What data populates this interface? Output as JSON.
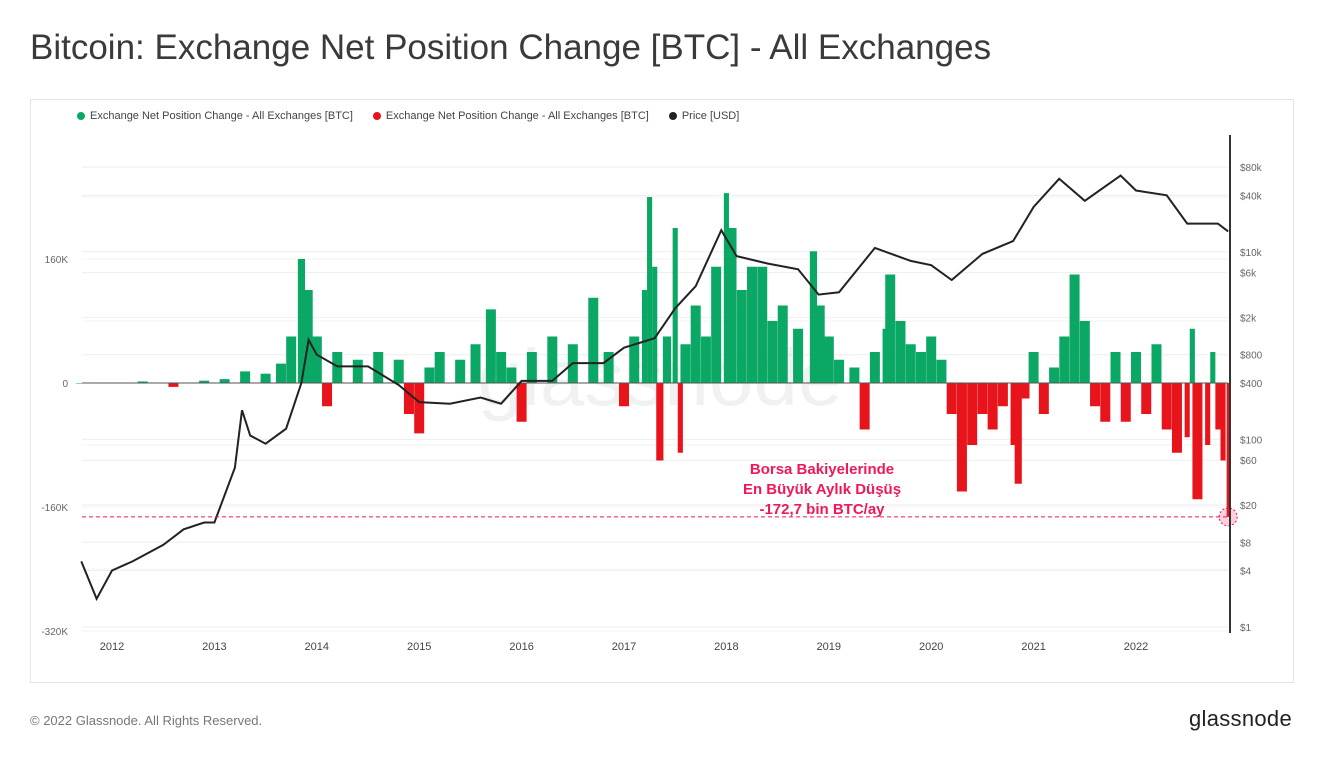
{
  "title": "Bitcoin: Exchange Net Position Change [BTC] - All Exchanges",
  "footer": "© 2022 Glassnode. All Rights Reserved.",
  "logo": "glassnode",
  "watermark": "glassnode",
  "colors": {
    "positive": "#0aa864",
    "negative": "#e8141b",
    "price": "#222222",
    "annotation": "#f0185a"
  },
  "chart_data": {
    "type": "bar+line",
    "legend_position": "top-left",
    "legend": [
      {
        "label": "Exchange Net Position Change - All Exchanges [BTC]",
        "color": "#0aa864"
      },
      {
        "label": "Exchange Net Position Change - All Exchanges [BTC]",
        "color": "#e8141b"
      },
      {
        "label": "Price [USD]",
        "color": "#222222"
      }
    ],
    "x_ticks": [
      "2012",
      "2013",
      "2014",
      "2015",
      "2016",
      "2017",
      "2018",
      "2019",
      "2020",
      "2021",
      "2022"
    ],
    "x_range": [
      2011.7,
      2022.9
    ],
    "left_axis": {
      "ticks": [
        {
          "v": 160,
          "label": "160K"
        },
        {
          "v": 0,
          "label": "0"
        },
        {
          "v": -160,
          "label": "-160K"
        },
        {
          "v": -320,
          "label": "-320K"
        }
      ],
      "unit": "thousand BTC",
      "range": [
        -320,
        320
      ]
    },
    "right_axis": {
      "scale": "log",
      "ticks": [
        {
          "v": 80000,
          "label": "$80k"
        },
        {
          "v": 40000,
          "label": "$40k"
        },
        {
          "v": 10000,
          "label": "$10k"
        },
        {
          "v": 6000,
          "label": "$6k"
        },
        {
          "v": 2000,
          "label": "$2k"
        },
        {
          "v": 800,
          "label": "$800"
        },
        {
          "v": 400,
          "label": "$400"
        },
        {
          "v": 100,
          "label": "$100"
        },
        {
          "v": 60,
          "label": "$60"
        },
        {
          "v": 20,
          "label": "$20"
        },
        {
          "v": 8,
          "label": "$8"
        },
        {
          "v": 4,
          "label": "$4"
        },
        {
          "v": 1,
          "label": "$1"
        }
      ],
      "range": [
        1,
        400000
      ]
    },
    "net_position_change_kbtc": [
      [
        2011.7,
        0
      ],
      [
        2012.3,
        2
      ],
      [
        2012.6,
        -5
      ],
      [
        2012.9,
        3
      ],
      [
        2013.1,
        5
      ],
      [
        2013.3,
        15
      ],
      [
        2013.5,
        12
      ],
      [
        2013.65,
        25
      ],
      [
        2013.75,
        60
      ],
      [
        2013.85,
        160
      ],
      [
        2013.92,
        120
      ],
      [
        2014.0,
        60
      ],
      [
        2014.1,
        -30
      ],
      [
        2014.2,
        40
      ],
      [
        2014.4,
        30
      ],
      [
        2014.6,
        40
      ],
      [
        2014.8,
        30
      ],
      [
        2014.9,
        -40
      ],
      [
        2015.0,
        -65
      ],
      [
        2015.1,
        20
      ],
      [
        2015.2,
        40
      ],
      [
        2015.4,
        30
      ],
      [
        2015.55,
        50
      ],
      [
        2015.7,
        95
      ],
      [
        2015.8,
        40
      ],
      [
        2015.9,
        20
      ],
      [
        2016.0,
        -50
      ],
      [
        2016.1,
        40
      ],
      [
        2016.3,
        60
      ],
      [
        2016.5,
        50
      ],
      [
        2016.7,
        110
      ],
      [
        2016.85,
        40
      ],
      [
        2017.0,
        -30
      ],
      [
        2017.1,
        60
      ],
      [
        2017.2,
        120
      ],
      [
        2017.25,
        240
      ],
      [
        2017.3,
        150
      ],
      [
        2017.35,
        -100
      ],
      [
        2017.42,
        60
      ],
      [
        2017.5,
        200
      ],
      [
        2017.55,
        -90
      ],
      [
        2017.6,
        50
      ],
      [
        2017.7,
        100
      ],
      [
        2017.8,
        60
      ],
      [
        2017.9,
        150
      ],
      [
        2018.0,
        245
      ],
      [
        2018.05,
        200
      ],
      [
        2018.15,
        120
      ],
      [
        2018.25,
        150
      ],
      [
        2018.35,
        150
      ],
      [
        2018.45,
        80
      ],
      [
        2018.55,
        100
      ],
      [
        2018.7,
        70
      ],
      [
        2018.85,
        170
      ],
      [
        2018.92,
        100
      ],
      [
        2019.0,
        60
      ],
      [
        2019.1,
        30
      ],
      [
        2019.25,
        20
      ],
      [
        2019.35,
        -60
      ],
      [
        2019.45,
        40
      ],
      [
        2019.55,
        70
      ],
      [
        2019.6,
        140
      ],
      [
        2019.7,
        80
      ],
      [
        2019.8,
        50
      ],
      [
        2019.9,
        40
      ],
      [
        2020.0,
        60
      ],
      [
        2020.1,
        30
      ],
      [
        2020.2,
        -40
      ],
      [
        2020.3,
        -140
      ],
      [
        2020.4,
        -80
      ],
      [
        2020.5,
        -40
      ],
      [
        2020.6,
        -60
      ],
      [
        2020.7,
        -30
      ],
      [
        2020.8,
        -80
      ],
      [
        2020.85,
        -130
      ],
      [
        2020.92,
        -20
      ],
      [
        2021.0,
        40
      ],
      [
        2021.1,
        -40
      ],
      [
        2021.2,
        20
      ],
      [
        2021.3,
        60
      ],
      [
        2021.4,
        140
      ],
      [
        2021.5,
        80
      ],
      [
        2021.6,
        -30
      ],
      [
        2021.7,
        -50
      ],
      [
        2021.8,
        40
      ],
      [
        2021.9,
        -50
      ],
      [
        2022.0,
        40
      ],
      [
        2022.1,
        -40
      ],
      [
        2022.2,
        50
      ],
      [
        2022.3,
        -60
      ],
      [
        2022.4,
        -90
      ],
      [
        2022.5,
        -70
      ],
      [
        2022.55,
        70
      ],
      [
        2022.6,
        -150
      ],
      [
        2022.7,
        -80
      ],
      [
        2022.75,
        40
      ],
      [
        2022.8,
        -60
      ],
      [
        2022.85,
        -100
      ],
      [
        2022.9,
        -172.7
      ]
    ],
    "price_usd": [
      [
        2011.7,
        5
      ],
      [
        2011.85,
        2
      ],
      [
        2012.0,
        4
      ],
      [
        2012.2,
        5
      ],
      [
        2012.5,
        7.5
      ],
      [
        2012.7,
        11
      ],
      [
        2012.9,
        13
      ],
      [
        2013.0,
        13
      ],
      [
        2013.2,
        50
      ],
      [
        2013.27,
        205
      ],
      [
        2013.35,
        110
      ],
      [
        2013.5,
        90
      ],
      [
        2013.7,
        130
      ],
      [
        2013.85,
        400
      ],
      [
        2013.92,
        1150
      ],
      [
        2014.0,
        800
      ],
      [
        2014.2,
        600
      ],
      [
        2014.5,
        600
      ],
      [
        2014.8,
        380
      ],
      [
        2015.0,
        250
      ],
      [
        2015.3,
        240
      ],
      [
        2015.6,
        280
      ],
      [
        2015.8,
        240
      ],
      [
        2016.0,
        420
      ],
      [
        2016.3,
        420
      ],
      [
        2016.5,
        650
      ],
      [
        2016.8,
        650
      ],
      [
        2017.0,
        950
      ],
      [
        2017.3,
        1200
      ],
      [
        2017.5,
        2500
      ],
      [
        2017.7,
        4300
      ],
      [
        2017.95,
        17000
      ],
      [
        2018.1,
        9000
      ],
      [
        2018.4,
        7500
      ],
      [
        2018.7,
        6500
      ],
      [
        2018.9,
        3500
      ],
      [
        2019.1,
        3700
      ],
      [
        2019.45,
        11000
      ],
      [
        2019.8,
        8000
      ],
      [
        2020.0,
        7200
      ],
      [
        2020.2,
        5000
      ],
      [
        2020.5,
        9500
      ],
      [
        2020.8,
        13000
      ],
      [
        2021.0,
        30000
      ],
      [
        2021.25,
        60000
      ],
      [
        2021.5,
        35000
      ],
      [
        2021.85,
        65000
      ],
      [
        2022.0,
        45000
      ],
      [
        2022.3,
        40000
      ],
      [
        2022.5,
        20000
      ],
      [
        2022.8,
        20000
      ],
      [
        2022.9,
        16500
      ]
    ],
    "annotation": {
      "lines": [
        "Borsa Bakiyelerinde",
        "En Büyük Aylık Düşüş",
        "-172,7 bin BTC/ay"
      ],
      "value_kbtc": -172.7
    }
  }
}
